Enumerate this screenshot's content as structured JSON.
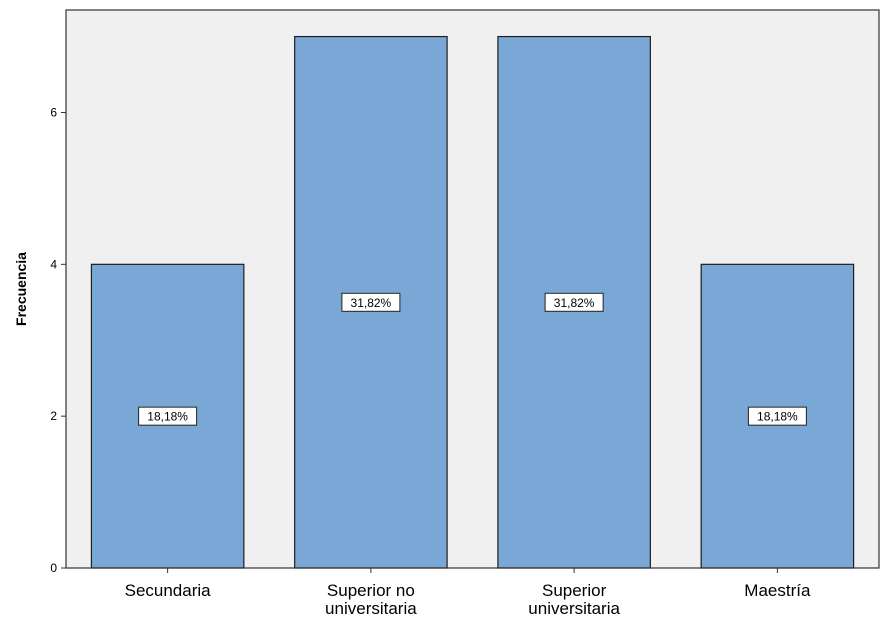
{
  "chart_data": {
    "type": "bar",
    "categories": [
      [
        "Secundaria"
      ],
      [
        "Superior no",
        "universitaria"
      ],
      [
        "Superior",
        "universitaria"
      ],
      [
        "Maestría"
      ]
    ],
    "values": [
      4,
      7,
      7,
      4
    ],
    "data_labels": [
      "18,18%",
      "31,82%",
      "31,82%",
      "18,18%"
    ],
    "ylabel": "Frecuencia",
    "xlabel": "",
    "ylim": [
      0,
      7.35
    ],
    "yticks": [
      0,
      2,
      4,
      6
    ],
    "yticks_labels": [
      "0",
      "2",
      "4",
      "6"
    ],
    "grid": false,
    "colors": {
      "bar_fill": "#79a8d6",
      "bar_stroke": "#1e1e1e",
      "plot_background": "#f0f0f0",
      "frame": "#333333"
    }
  }
}
